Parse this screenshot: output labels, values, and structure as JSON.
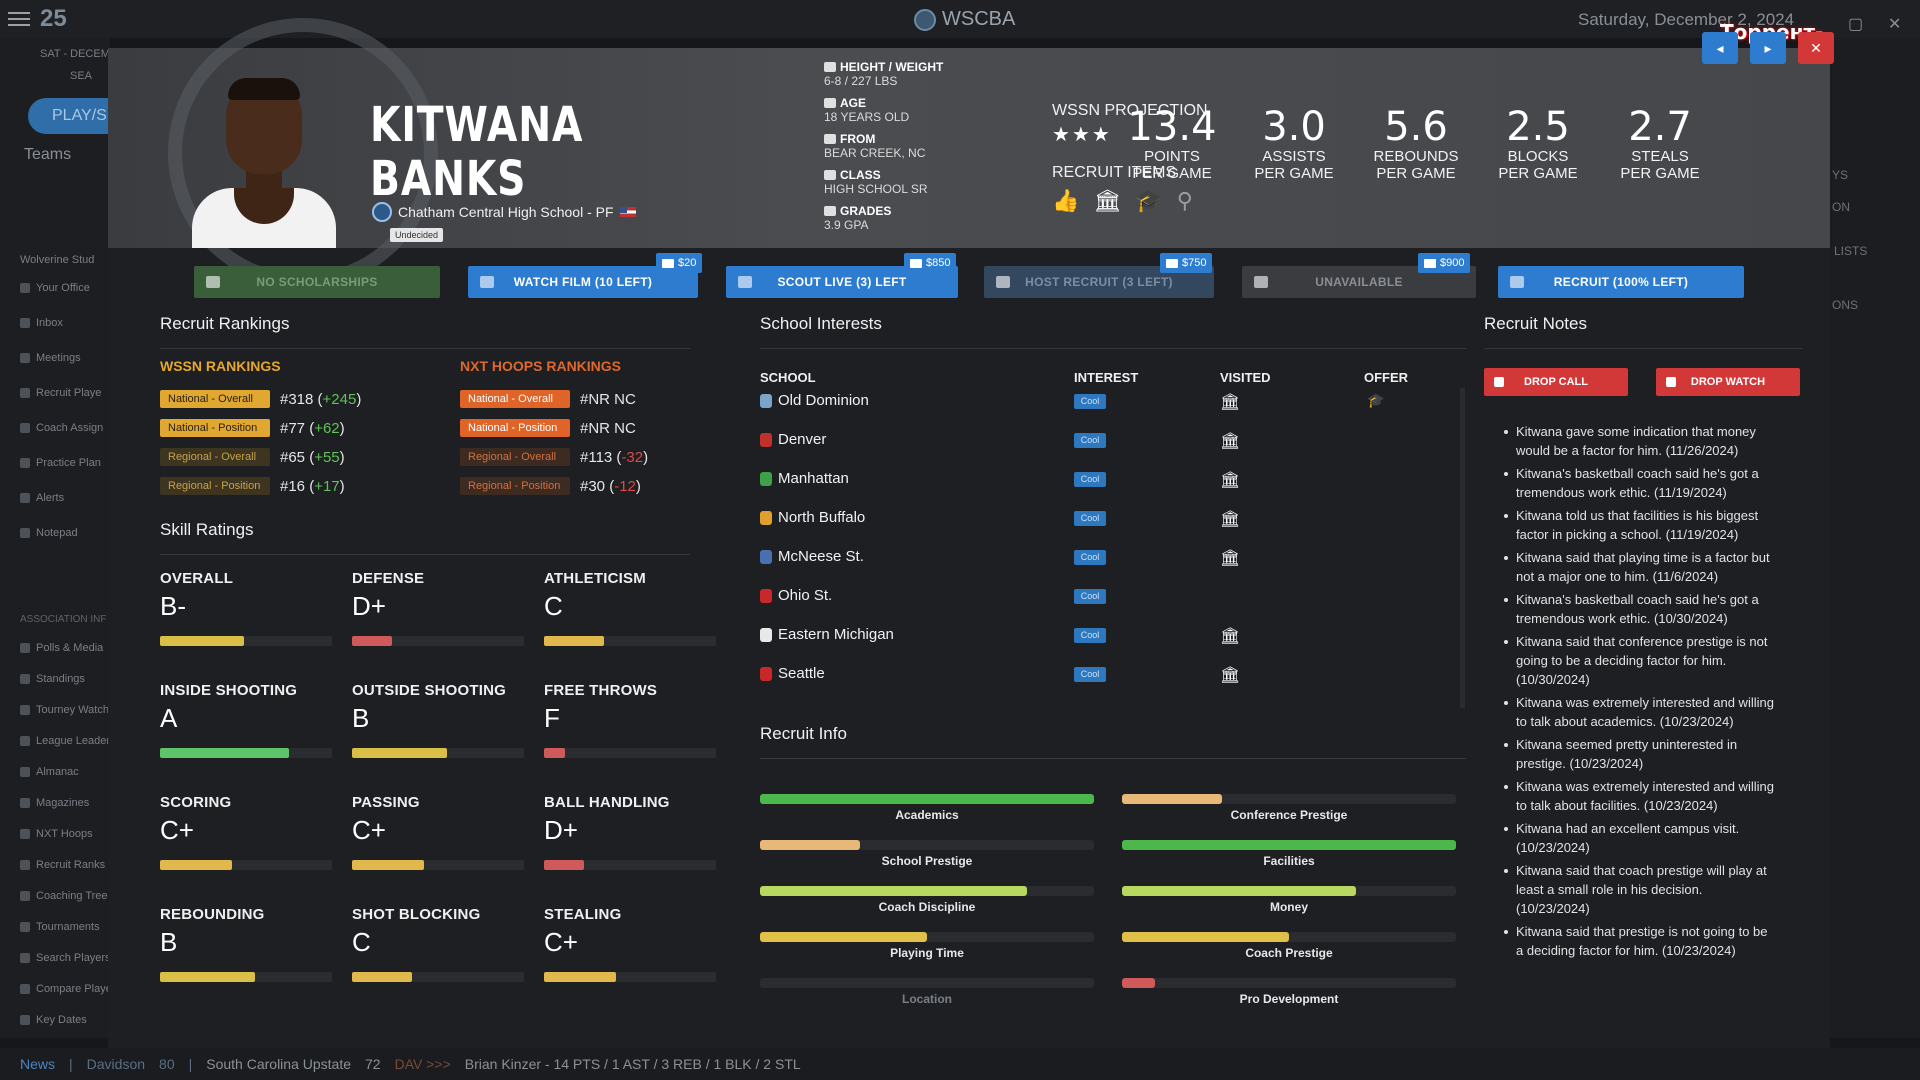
{
  "topbar": {
    "logo_text": "25",
    "brand": "WSCBA",
    "date": "Saturday, December 2, 2024",
    "watermark": "Торрент-Игруха.Орг"
  },
  "sidebar": {
    "date_line": "SAT - DECEM",
    "search": "SEA",
    "play_label": "PLAY/SI",
    "teams_label": "Teams",
    "team_name": "Wolverine Stud",
    "items": [
      "Your Office",
      "Inbox",
      "Meetings",
      "Recruit Playe",
      "Coach Assign",
      "Practice Plan",
      "Alerts",
      "Notepad"
    ],
    "section": "ASSOCIATION INF",
    "assoc_items": [
      "Polls & Media",
      "Standings",
      "Tourney Watch",
      "League Leader",
      "Almanac",
      "Magazines",
      "NXT Hoops",
      "Recruit Ranks",
      "Coaching Trees",
      "Tournaments",
      "Search Players",
      "Compare Playe",
      "Key Dates"
    ]
  },
  "right_col": {
    "a": "YS",
    "b": "ON",
    "c": "LISTS",
    "d": "ONS"
  },
  "ticker": {
    "news": "News",
    "team1": "Davidson",
    "score1": "80",
    "team2": "South Carolina Upstate",
    "score2": "72",
    "dav": "DAV >>>",
    "line": "Brian Kinzer - 14 PTS / 1 AST / 3 REB / 1 BLK / 2 STL"
  },
  "player": {
    "first": "KITWANA",
    "last": "BANKS",
    "school": "Chatham Central High School - PF",
    "status": "Undecided",
    "bio": [
      {
        "label": "HEIGHT / WEIGHT",
        "value": "6-8 / 227 LBS"
      },
      {
        "label": "AGE",
        "value": "18 YEARS OLD"
      },
      {
        "label": "FROM",
        "value": "BEAR CREEK, NC"
      },
      {
        "label": "CLASS",
        "value": "HIGH SCHOOL SR"
      },
      {
        "label": "GRADES",
        "value": "3.9 GPA"
      }
    ],
    "projection_label": "WSSN PROJECTION",
    "stars": "★★★",
    "items_label": "RECRUIT ITEMS",
    "stats": [
      {
        "num": "13.4",
        "l1": "POINTS",
        "l2": "PER GAME"
      },
      {
        "num": "3.0",
        "l1": "ASSISTS",
        "l2": "PER GAME"
      },
      {
        "num": "5.6",
        "l1": "REBOUNDS",
        "l2": "PER GAME"
      },
      {
        "num": "2.5",
        "l1": "BLOCKS",
        "l2": "PER GAME"
      },
      {
        "num": "2.7",
        "l1": "STEALS",
        "l2": "PER GAME"
      }
    ]
  },
  "actions": {
    "no_scholarships": "NO SCHOLARSHIPS",
    "watch_film": "WATCH FILM (10 LEFT)",
    "scout_live": "SCOUT LIVE (3) LEFT",
    "host_recruit": "HOST RECRUIT (3 LEFT)",
    "unavailable": "UNAVAILABLE",
    "recruit": "RECRUIT (100% LEFT)",
    "cost_watch": "$20",
    "cost_scout": "$850",
    "cost_host": "$750",
    "cost_recruit": "$900"
  },
  "rankings": {
    "title": "Recruit Rankings",
    "wssn_head": "WSSN RANKINGS",
    "nxt_head": "NXT HOOPS RANKINGS",
    "wssn": [
      {
        "label": "National - Overall",
        "rank": "#318",
        "chg": "+245"
      },
      {
        "label": "National - Position",
        "rank": "#77",
        "chg": "+62"
      },
      {
        "label": "Regional - Overall",
        "rank": "#65",
        "chg": "+55"
      },
      {
        "label": "Regional - Position",
        "rank": "#16",
        "chg": "+17"
      }
    ],
    "nxt": [
      {
        "label": "National - Overall",
        "rank": "#NR NC",
        "chg": ""
      },
      {
        "label": "National - Position",
        "rank": "#NR NC",
        "chg": ""
      },
      {
        "label": "Regional - Overall",
        "rank": "#113",
        "chg": "-32"
      },
      {
        "label": "Regional - Position",
        "rank": "#30",
        "chg": "-12"
      }
    ]
  },
  "skills": {
    "title": "Skill Ratings",
    "list": [
      {
        "name": "OVERALL",
        "grade": "B-",
        "level": 0.49,
        "color": "#d8c048"
      },
      {
        "name": "DEFENSE",
        "grade": "D+",
        "level": 0.23,
        "color": "#d05a5a"
      },
      {
        "name": "ATHLETICISM",
        "grade": "C",
        "level": 0.35,
        "color": "#e0b84c"
      },
      {
        "name": "INSIDE SHOOTING",
        "grade": "A",
        "level": 0.75,
        "color": "#5ec46a"
      },
      {
        "name": "OUTSIDE SHOOTING",
        "grade": "B",
        "level": 0.55,
        "color": "#d8c048"
      },
      {
        "name": "FREE THROWS",
        "grade": "F",
        "level": 0.12,
        "color": "#d05a5a"
      },
      {
        "name": "SCORING",
        "grade": "C+",
        "level": 0.42,
        "color": "#e0b84c"
      },
      {
        "name": "PASSING",
        "grade": "C+",
        "level": 0.42,
        "color": "#e0b84c"
      },
      {
        "name": "BALL HANDLING",
        "grade": "D+",
        "level": 0.23,
        "color": "#d05a5a"
      },
      {
        "name": "REBOUNDING",
        "grade": "B",
        "level": 0.55,
        "color": "#d8c048"
      },
      {
        "name": "SHOT BLOCKING",
        "grade": "C",
        "level": 0.35,
        "color": "#e0b84c"
      },
      {
        "name": "STEALING",
        "grade": "C+",
        "level": 0.42,
        "color": "#e0b84c"
      }
    ]
  },
  "interests": {
    "title": "School Interests",
    "cols": {
      "school": "SCHOOL",
      "interest": "INTEREST",
      "visited": "VISITED",
      "offer": "OFFER"
    },
    "rows": [
      {
        "name": "Old Dominion",
        "interest": "Cool",
        "visited": true,
        "offer": true,
        "color": "#7aa4c8"
      },
      {
        "name": "Denver",
        "interest": "Cool",
        "visited": true,
        "offer": false,
        "color": "#c0302c"
      },
      {
        "name": "Manhattan",
        "interest": "Cool",
        "visited": true,
        "offer": false,
        "color": "#3fa04a"
      },
      {
        "name": "North Buffalo",
        "interest": "Cool",
        "visited": true,
        "offer": false,
        "color": "#e0a030"
      },
      {
        "name": "McNeese St.",
        "interest": "Cool",
        "visited": true,
        "offer": false,
        "color": "#4a6fb0"
      },
      {
        "name": "Ohio St.",
        "interest": "Cool",
        "visited": false,
        "offer": false,
        "color": "#c82828"
      },
      {
        "name": "Eastern Michigan",
        "interest": "Cool",
        "visited": true,
        "offer": false,
        "color": "#e8e8e8"
      },
      {
        "name": "Seattle",
        "interest": "Cool",
        "visited": true,
        "offer": false,
        "color": "#c82828"
      }
    ]
  },
  "info": {
    "title": "Recruit Info",
    "items": [
      {
        "label": "Academics",
        "level": 1.0,
        "color": "#4cb84c",
        "dim": false
      },
      {
        "label": "Conference Prestige",
        "level": 0.3,
        "color": "#e8b878",
        "dim": false
      },
      {
        "label": "School Prestige",
        "level": 0.3,
        "color": "#e8b878",
        "dim": false
      },
      {
        "label": "Facilities",
        "level": 1.0,
        "color": "#4cb84c",
        "dim": false
      },
      {
        "label": "Coach Discipline",
        "level": 0.8,
        "color": "#b8d860",
        "dim": false
      },
      {
        "label": "Money",
        "level": 0.7,
        "color": "#b8d860",
        "dim": false
      },
      {
        "label": "Playing Time",
        "level": 0.5,
        "color": "#e0c048",
        "dim": false
      },
      {
        "label": "Coach Prestige",
        "level": 0.5,
        "color": "#e0c048",
        "dim": false
      },
      {
        "label": "Location",
        "level": 0,
        "color": "#888888",
        "dim": true
      },
      {
        "label": "Pro Development",
        "level": 0.1,
        "color": "#d05a5a",
        "dim": false
      }
    ]
  },
  "notes": {
    "title": "Recruit Notes",
    "drop_call": "DROP CALL",
    "drop_watch": "DROP WATCH",
    "list": [
      "Kitwana gave some indication that money would be a factor for him. (11/26/2024)",
      "Kitwana's basketball coach said he's got a tremendous work ethic. (11/19/2024)",
      "Kitwana told us that facilities is his biggest factor in picking a school. (11/19/2024)",
      "Kitwana said that playing time is a factor but not a major one to him. (11/6/2024)",
      "Kitwana's basketball coach said he's got a tremendous work ethic. (10/30/2024)",
      "Kitwana said that conference prestige is not going to be a deciding factor for him. (10/30/2024)",
      "Kitwana was extremely interested and willing to talk about academics. (10/23/2024)",
      "Kitwana seemed pretty uninterested in prestige. (10/23/2024)",
      "Kitwana was extremely interested and willing to talk about facilities. (10/23/2024)",
      "Kitwana had an excellent campus visit. (10/23/2024)",
      "Kitwana said that coach prestige will play at least a small role in his decision. (10/23/2024)",
      "Kitwana said that prestige is not going to be a deciding factor for him. (10/23/2024)"
    ]
  }
}
